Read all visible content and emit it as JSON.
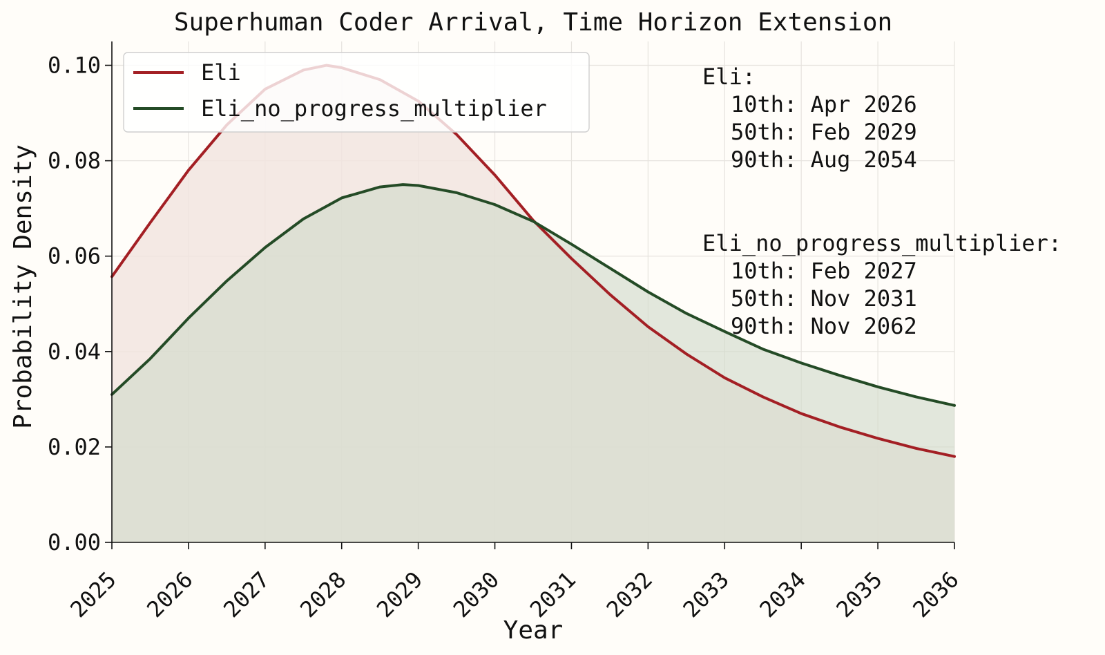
{
  "chart_data": {
    "type": "area",
    "title": "Superhuman Coder Arrival, Time Horizon Extension",
    "xlabel": "Year",
    "ylabel": "Probability Density",
    "xlim": [
      2025,
      2036
    ],
    "ylim": [
      0,
      0.105
    ],
    "x_ticks": [
      "2025",
      "2026",
      "2027",
      "2028",
      "2029",
      "2030",
      "2031",
      "2032",
      "2033",
      "2034",
      "2035",
      "2036"
    ],
    "y_ticks": [
      "0.00",
      "0.02",
      "0.04",
      "0.06",
      "0.08",
      "0.10"
    ],
    "grid": true,
    "legend_position": "top-left",
    "series": [
      {
        "name": "Eli",
        "color": "#a31f24",
        "fill": "#f2e4df",
        "x": [
          2025,
          2025.5,
          2026,
          2026.5,
          2027,
          2027.5,
          2027.8,
          2028,
          2028.5,
          2029,
          2029.5,
          2030,
          2030.5,
          2031,
          2031.5,
          2032,
          2032.5,
          2033,
          2033.5,
          2034,
          2034.5,
          2035,
          2035.5,
          2036
        ],
        "y": [
          0.0557,
          0.067,
          0.078,
          0.0875,
          0.095,
          0.099,
          0.1,
          0.0995,
          0.097,
          0.0925,
          0.0855,
          0.077,
          0.0675,
          0.0595,
          0.052,
          0.0452,
          0.0395,
          0.0345,
          0.0305,
          0.027,
          0.0242,
          0.0218,
          0.0197,
          0.018
        ]
      },
      {
        "name": "Eli_no_progress_multiplier",
        "color": "#244b26",
        "fill": "#d0dac9",
        "x": [
          2025,
          2025.5,
          2026,
          2026.5,
          2027,
          2027.5,
          2028,
          2028.5,
          2028.8,
          2029,
          2029.5,
          2030,
          2030.5,
          2031,
          2031.5,
          2032,
          2032.5,
          2033,
          2033.5,
          2034,
          2034.5,
          2035,
          2035.5,
          2036
        ],
        "y": [
          0.031,
          0.0385,
          0.047,
          0.0548,
          0.0618,
          0.0678,
          0.0722,
          0.0745,
          0.075,
          0.0748,
          0.0733,
          0.0708,
          0.0673,
          0.0625,
          0.0575,
          0.0525,
          0.048,
          0.0442,
          0.0405,
          0.0376,
          0.035,
          0.0326,
          0.0305,
          0.0287
        ]
      }
    ],
    "annotations": {
      "block1": {
        "header": "Eli:",
        "lines": [
          "10th: Apr 2026",
          "50th: Feb 2029",
          "90th: Aug 2054"
        ]
      },
      "block2": {
        "header": "Eli_no_progress_multiplier:",
        "lines": [
          "10th: Feb 2027",
          "50th: Nov 2031",
          "90th: Nov 2062"
        ]
      }
    }
  }
}
